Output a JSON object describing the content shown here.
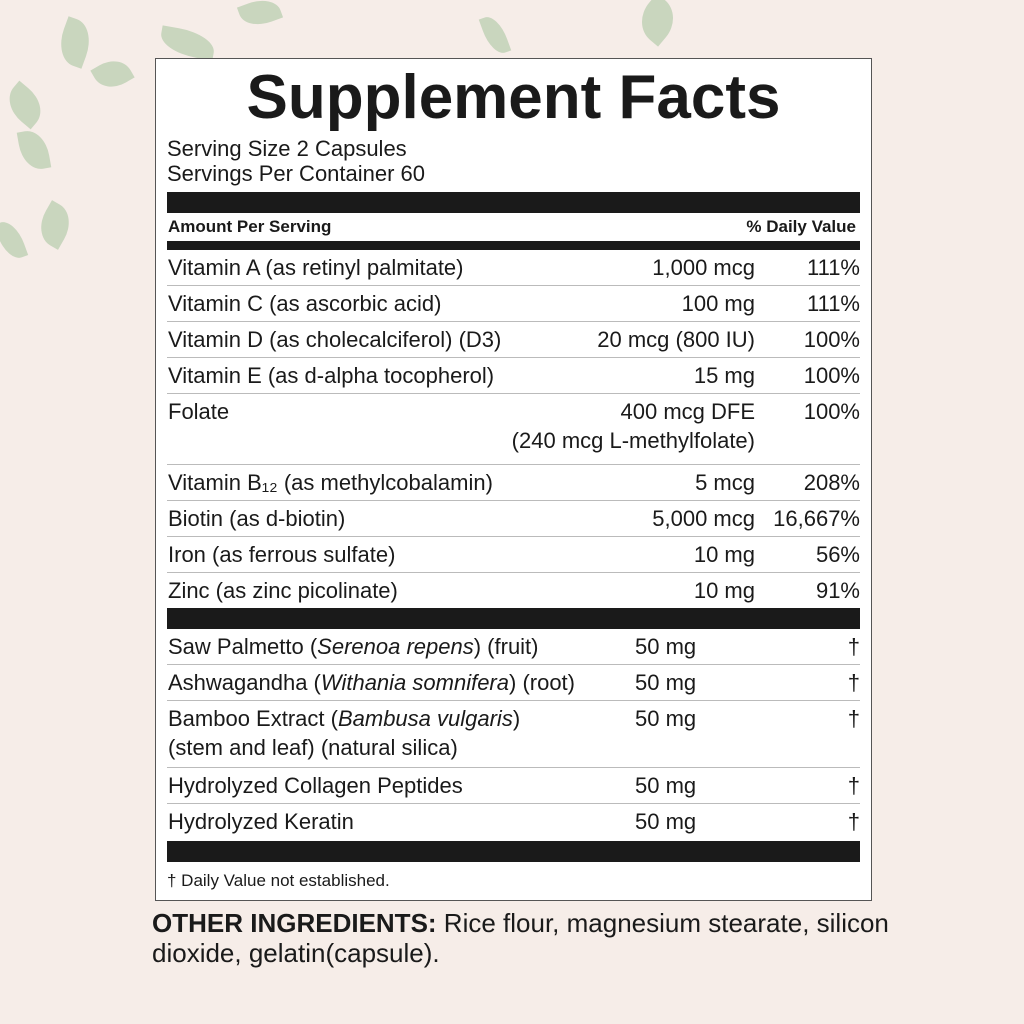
{
  "title": "Supplement Facts",
  "serving_size": "Serving Size 2 Capsules",
  "servings_per_container": "Servings Per Container 60",
  "header": {
    "amount": "Amount Per Serving",
    "dv": "% Daily Value"
  },
  "nutrients": [
    {
      "name": "Vitamin A (as retinyl palmitate)",
      "amount": "1,000 mcg",
      "dv": "111%"
    },
    {
      "name": "Vitamin C (as ascorbic acid)",
      "amount": "100 mg",
      "dv": "111%"
    },
    {
      "name": "Vitamin D (as cholecalciferol) (D3)",
      "amount": "20 mcg (800 IU)",
      "dv": "100%"
    },
    {
      "name": "Vitamin E (as d-alpha tocopherol)",
      "amount": "15 mg",
      "dv": "100%"
    },
    {
      "name": "Folate",
      "amount": "400 mcg DFE",
      "amount2": "(240 mcg L-methylfolate)",
      "dv": "100%"
    },
    {
      "name": "Vitamin B₁₂ (as methylcobalamin)",
      "amount": "5 mcg",
      "dv": "208%"
    },
    {
      "name": "Biotin (as d-biotin)",
      "amount": "5,000 mcg",
      "dv": "16,667%"
    },
    {
      "name": "Iron (as ferrous sulfate)",
      "amount": "10 mg",
      "dv": "56%"
    },
    {
      "name": "Zinc (as zinc picolinate)",
      "amount": "10 mg",
      "dv": "91%"
    }
  ],
  "others": [
    {
      "pre": "Saw Palmetto (",
      "latin": "Serenoa repens",
      "post": ") (fruit)",
      "amount": "50 mg",
      "dv": "†"
    },
    {
      "pre": "Ashwagandha (",
      "latin": "Withania somnifera",
      "post": ") (root)",
      "amount": "50 mg",
      "dv": "†"
    },
    {
      "pre": "Bamboo Extract (",
      "latin": "Bambusa vulgaris",
      "post": ")",
      "line2": "(stem and leaf) (natural silica)",
      "amount": "50 mg",
      "dv": "†"
    },
    {
      "pre": "Hydrolyzed Collagen Peptides",
      "latin": "",
      "post": "",
      "amount": "50 mg",
      "dv": "†"
    },
    {
      "pre": "Hydrolyzed Keratin",
      "latin": "",
      "post": "",
      "amount": "50 mg",
      "dv": "†"
    }
  ],
  "footnote": "† Daily Value not established.",
  "other_ingredients": {
    "label": "OTHER INGREDIENTS:",
    "text": " Rice flour, magnesium stearate, silicon dioxide, gelatin(capsule)."
  },
  "colors": {
    "background": "#f6ede8",
    "ink": "#1a1a1a",
    "leaf": "#b9cdb0"
  }
}
